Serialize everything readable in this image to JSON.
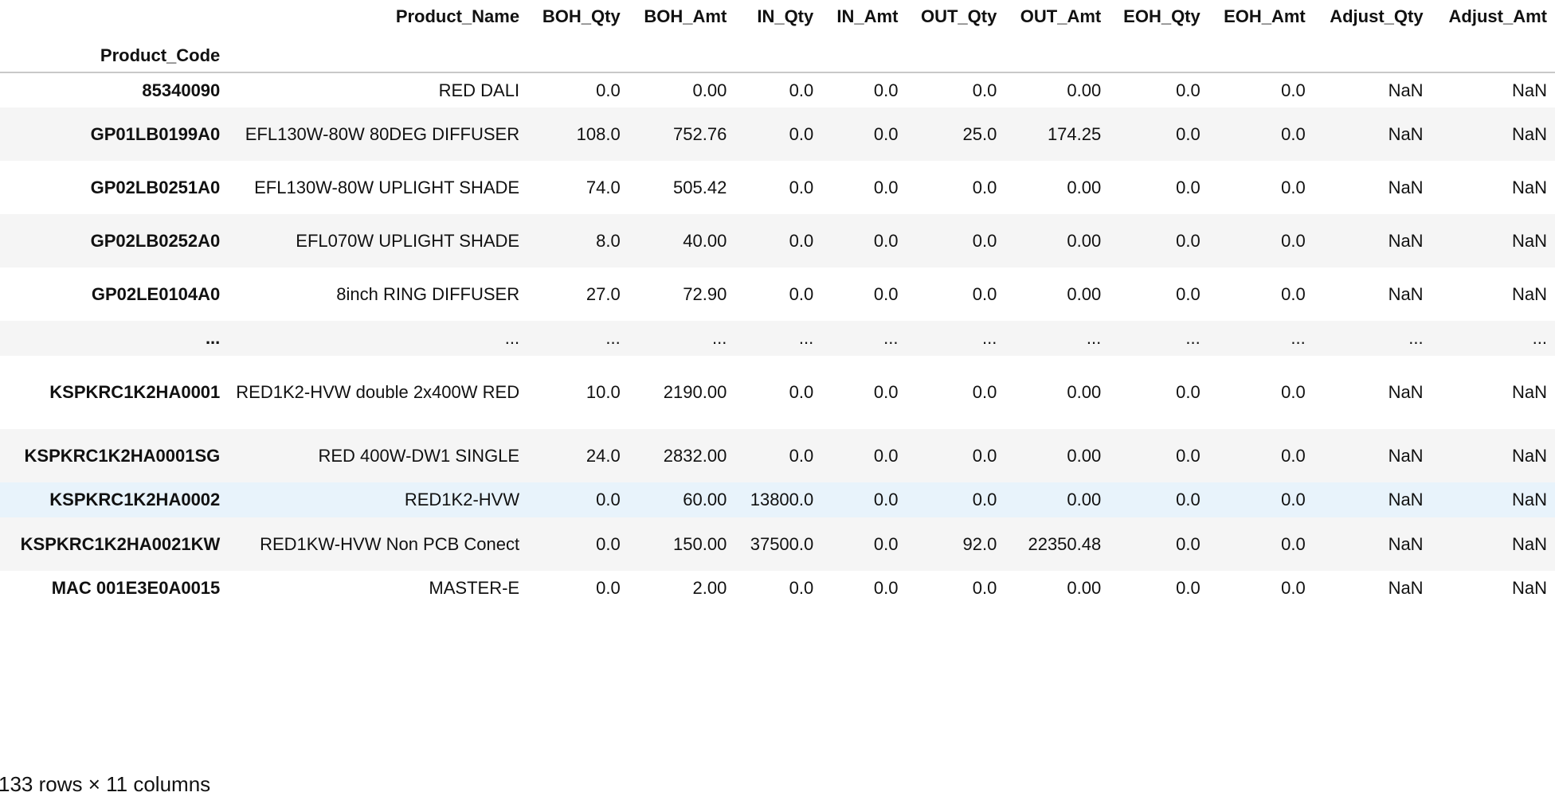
{
  "table": {
    "index_name": "Product_Code",
    "columns": [
      "Product_Name",
      "BOH_Qty",
      "BOH_Amt",
      "IN_Qty",
      "IN_Amt",
      "OUT_Qty",
      "OUT_Amt",
      "EOH_Qty",
      "EOH_Amt",
      "Adjust_Qty",
      "Adjust_Amt"
    ],
    "rows": [
      {
        "code": "85340090",
        "name": "RED DALI",
        "values": [
          "0.0",
          "0.00",
          "0.0",
          "0.0",
          "0.0",
          "0.00",
          "0.0",
          "0.0",
          "NaN",
          "NaN"
        ]
      },
      {
        "code": "GP01LB0199A0",
        "name": "EFL130W-80W 80DEG DIFFUSER",
        "values": [
          "108.0",
          "752.76",
          "0.0",
          "0.0",
          "25.0",
          "174.25",
          "0.0",
          "0.0",
          "NaN",
          "NaN"
        ]
      },
      {
        "code": "GP02LB0251A0",
        "name": "EFL130W-80W UPLIGHT SHADE",
        "values": [
          "74.0",
          "505.42",
          "0.0",
          "0.0",
          "0.0",
          "0.00",
          "0.0",
          "0.0",
          "NaN",
          "NaN"
        ]
      },
      {
        "code": "GP02LB0252A0",
        "name": "EFL070W UPLIGHT SHADE",
        "values": [
          "8.0",
          "40.00",
          "0.0",
          "0.0",
          "0.0",
          "0.00",
          "0.0",
          "0.0",
          "NaN",
          "NaN"
        ]
      },
      {
        "code": "GP02LE0104A0",
        "name": "8inch RING DIFFUSER",
        "values": [
          "27.0",
          "72.90",
          "0.0",
          "0.0",
          "0.0",
          "0.00",
          "0.0",
          "0.0",
          "NaN",
          "NaN"
        ]
      },
      {
        "code": "...",
        "name": "...",
        "values": [
          "...",
          "...",
          "...",
          "...",
          "...",
          "...",
          "...",
          "...",
          "...",
          "..."
        ]
      },
      {
        "code": "KSPKRC1K2HA0001",
        "name": "RED1K2-HVW double 2x400W RED",
        "values": [
          "10.0",
          "2190.00",
          "0.0",
          "0.0",
          "0.0",
          "0.00",
          "0.0",
          "0.0",
          "NaN",
          "NaN"
        ]
      },
      {
        "code": "KSPKRC1K2HA0001SG",
        "name": "RED 400W-DW1 SINGLE",
        "values": [
          "24.0",
          "2832.00",
          "0.0",
          "0.0",
          "0.0",
          "0.00",
          "0.0",
          "0.0",
          "NaN",
          "NaN"
        ]
      },
      {
        "code": "KSPKRC1K2HA0002",
        "name": "RED1K2-HVW",
        "values": [
          "0.0",
          "60.00",
          "13800.0",
          "0.0",
          "0.0",
          "0.00",
          "0.0",
          "0.0",
          "NaN",
          "NaN"
        ]
      },
      {
        "code": "KSPKRC1K2HA0021KW",
        "name": "RED1KW-HVW Non PCB Conect",
        "values": [
          "0.0",
          "150.00",
          "37500.0",
          "0.0",
          "92.0",
          "22350.48",
          "0.0",
          "0.0",
          "NaN",
          "NaN"
        ]
      },
      {
        "code": "MAC 001E3E0A0015",
        "name": "MASTER-E",
        "values": [
          "0.0",
          "2.00",
          "0.0",
          "0.0",
          "0.0",
          "0.00",
          "0.0",
          "0.0",
          "NaN",
          "NaN"
        ]
      }
    ],
    "caption": "133 rows × 11 columns"
  }
}
